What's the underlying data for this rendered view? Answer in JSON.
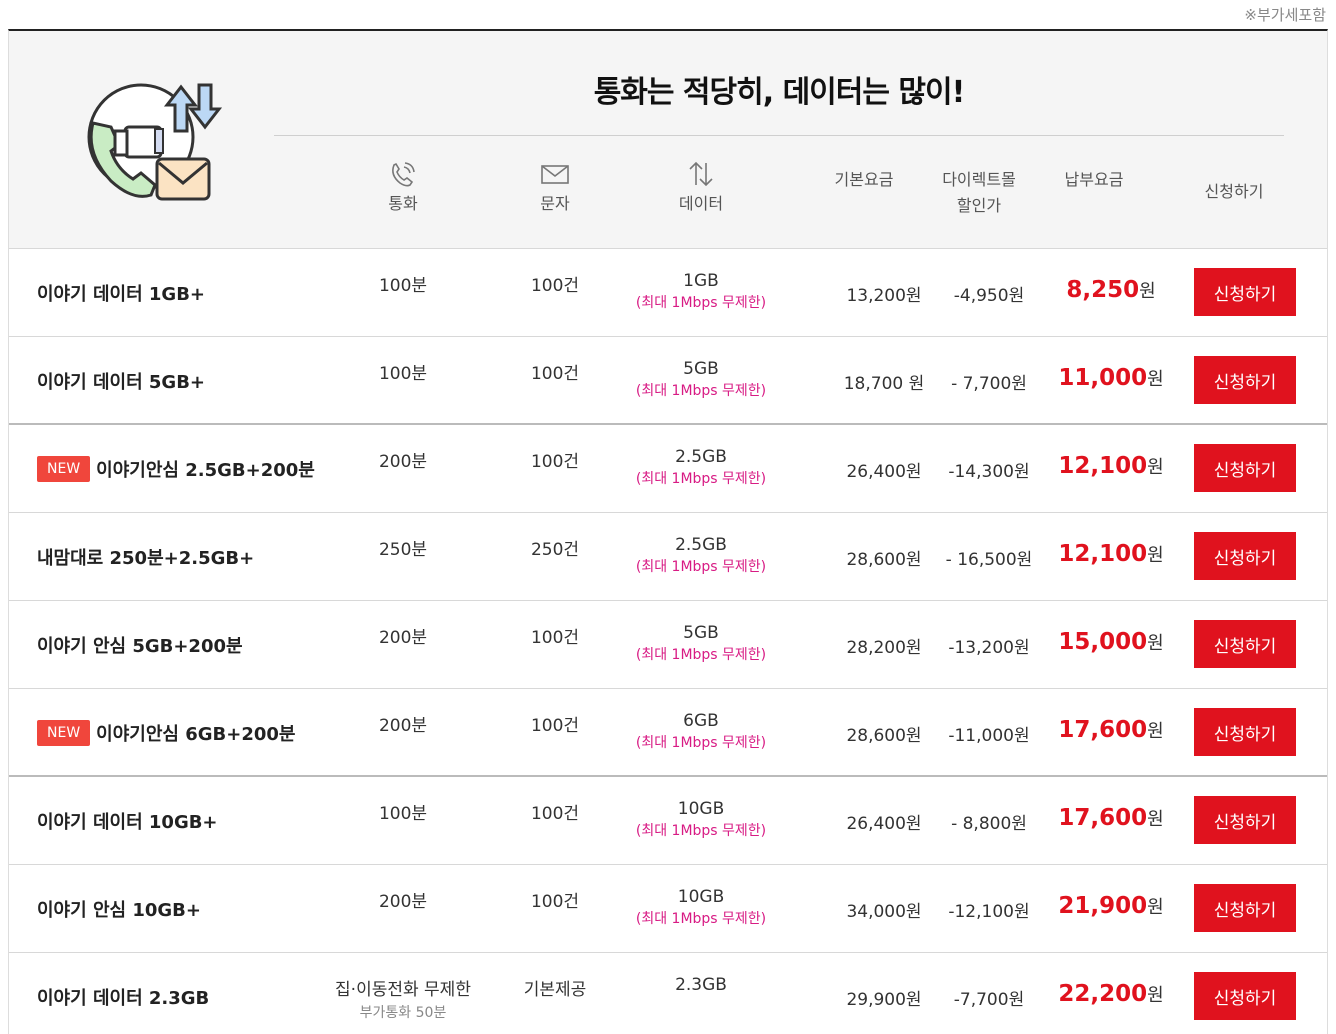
{
  "vat_note": "※부가세포함",
  "header": {
    "title": "통화는 적당히, 데이터는 많이!",
    "columns": {
      "call": "통화",
      "sms": "문자",
      "data": "데이터",
      "base": "기본요금",
      "discount_line1": "다이렉트몰",
      "discount_line2": "할인가",
      "pay": "납부요금",
      "apply": "신청하기"
    }
  },
  "colors": {
    "accent_red": "#e0121e",
    "limit_pink": "#d81b84",
    "new_badge": "#f0463c"
  },
  "unit_won": "원",
  "plans": [
    {
      "badge": "",
      "name": "이야기 데이터 1GB+",
      "call": "100분",
      "call_sub": "",
      "sms": "100건",
      "data": "1GB",
      "limit": "(최대 1Mbps 무제한)",
      "base": "13,200원",
      "discount": "-4,950원",
      "pay": "8,250",
      "btn": "신청하기"
    },
    {
      "badge": "",
      "name": "이야기 데이터 5GB+",
      "call": "100분",
      "call_sub": "",
      "sms": "100건",
      "data": "5GB",
      "limit": "(최대 1Mbps 무제한)",
      "base": "18,700 원",
      "discount": "- 7,700원",
      "pay": "11,000",
      "btn": "신청하기"
    },
    {
      "badge": "NEW",
      "name": "이야기안심 2.5GB+200분",
      "call": "200분",
      "call_sub": "",
      "sms": "100건",
      "data": "2.5GB",
      "limit": "(최대 1Mbps 무제한)",
      "base": "26,400원",
      "discount": "-14,300원",
      "pay": "12,100",
      "btn": "신청하기"
    },
    {
      "badge": "",
      "name": "내맘대로 250분+2.5GB+",
      "call": "250분",
      "call_sub": "",
      "sms": "250건",
      "data": "2.5GB",
      "limit": "(최대 1Mbps 무제한)",
      "base": "28,600원",
      "discount": "- 16,500원",
      "pay": "12,100",
      "btn": "신청하기"
    },
    {
      "badge": "",
      "name": "이야기 안심 5GB+200분",
      "call": "200분",
      "call_sub": "",
      "sms": "100건",
      "data": "5GB",
      "limit": "(최대 1Mbps 무제한)",
      "base": "28,200원",
      "discount": "-13,200원",
      "pay": "15,000",
      "btn": "신청하기"
    },
    {
      "badge": "NEW",
      "name": "이야기안심 6GB+200분",
      "call": "200분",
      "call_sub": "",
      "sms": "100건",
      "data": "6GB",
      "limit": "(최대 1Mbps 무제한)",
      "base": "28,600원",
      "discount": "-11,000원",
      "pay": "17,600",
      "btn": "신청하기"
    },
    {
      "badge": "",
      "name": "이야기 데이터 10GB+",
      "call": "100분",
      "call_sub": "",
      "sms": "100건",
      "data": "10GB",
      "limit": "(최대 1Mbps 무제한)",
      "base": "26,400원",
      "discount": "- 8,800원",
      "pay": "17,600",
      "btn": "신청하기"
    },
    {
      "badge": "",
      "name": "이야기 안심 10GB+",
      "call": "200분",
      "call_sub": "",
      "sms": "100건",
      "data": "10GB",
      "limit": "(최대 1Mbps 무제한)",
      "base": "34,000원",
      "discount": "-12,100원",
      "pay": "21,900",
      "btn": "신청하기"
    },
    {
      "badge": "",
      "name": "이야기 데이터 2.3GB",
      "call": "집·이동전화 무제한",
      "call_sub": "부가통화 50분",
      "sms": "기본제공",
      "data": "2.3GB",
      "limit": "",
      "base": "29,900원",
      "discount": "-7,700원",
      "pay": "22,200",
      "btn": "신청하기"
    }
  ]
}
